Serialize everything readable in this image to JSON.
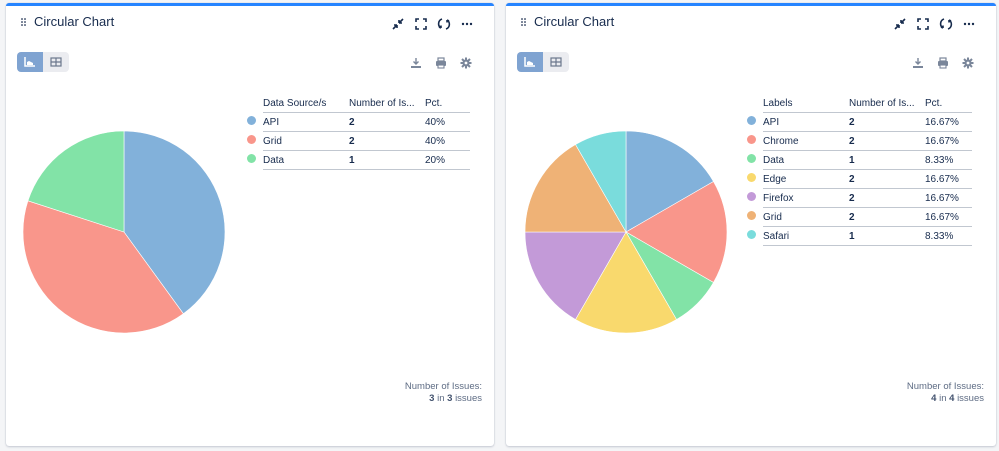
{
  "colors": {
    "accent": "#2684ff",
    "toggle_active": "#7fa3d1",
    "blue": "#82b1da",
    "red": "#f9968b",
    "green": "#82e3a7",
    "yellow": "#f9d96d",
    "purple": "#c39ad8",
    "orange": "#efb276",
    "teal": "#7adcdc"
  },
  "cards": [
    {
      "title": "Circular Chart",
      "header_icons": [
        "collapse-icon",
        "fullscreen-icon",
        "refresh-icon",
        "more-icon"
      ],
      "toolbar": {
        "chart_view": "chart-view",
        "table_view": "table-view",
        "active": "chart-view"
      },
      "tools": [
        "download-icon",
        "print-icon",
        "settings-icon"
      ],
      "legend": {
        "headers": {
          "label": "Data Source/s",
          "count": "Number of Is...",
          "pct": "Pct."
        },
        "rows": [
          {
            "label": "API",
            "count": "2",
            "pct": "40%",
            "color": "#82b1da"
          },
          {
            "label": "Grid",
            "count": "2",
            "pct": "40%",
            "color": "#f9968b"
          },
          {
            "label": "Data",
            "count": "1",
            "pct": "20%",
            "color": "#82e3a7"
          }
        ]
      },
      "footer": {
        "label": "Number of Issues:",
        "shown": "3",
        "in_text": "in",
        "total": "3",
        "suffix": "issues"
      }
    },
    {
      "title": "Circular Chart",
      "header_icons": [
        "collapse-icon",
        "fullscreen-icon",
        "refresh-icon",
        "more-icon"
      ],
      "toolbar": {
        "chart_view": "chart-view",
        "table_view": "table-view",
        "active": "chart-view"
      },
      "tools": [
        "download-icon",
        "print-icon",
        "settings-icon"
      ],
      "legend": {
        "headers": {
          "label": "Labels",
          "count": "Number of Is...",
          "pct": "Pct."
        },
        "rows": [
          {
            "label": "API",
            "count": "2",
            "pct": "16.67%",
            "color": "#82b1da"
          },
          {
            "label": "Chrome",
            "count": "2",
            "pct": "16.67%",
            "color": "#f9968b"
          },
          {
            "label": "Data",
            "count": "1",
            "pct": "8.33%",
            "color": "#82e3a7"
          },
          {
            "label": "Edge",
            "count": "2",
            "pct": "16.67%",
            "color": "#f9d96d"
          },
          {
            "label": "Firefox",
            "count": "2",
            "pct": "16.67%",
            "color": "#c39ad8"
          },
          {
            "label": "Grid",
            "count": "2",
            "pct": "16.67%",
            "color": "#efb276"
          },
          {
            "label": "Safari",
            "count": "1",
            "pct": "8.33%",
            "color": "#7adcdc"
          }
        ]
      },
      "footer": {
        "label": "Number of Issues:",
        "shown": "4",
        "in_text": "in",
        "total": "4",
        "suffix": "issues"
      }
    }
  ],
  "chart_data": [
    {
      "type": "pie",
      "title": "Circular Chart",
      "categories": [
        "API",
        "Grid",
        "Data"
      ],
      "values": [
        2,
        2,
        1
      ],
      "percentages": [
        40,
        40,
        20
      ],
      "colors": [
        "#82b1da",
        "#f9968b",
        "#82e3a7"
      ],
      "legend_position": "right",
      "legend_header": "Data Source/s",
      "total_text": "3 in 3 issues"
    },
    {
      "type": "pie",
      "title": "Circular Chart",
      "categories": [
        "API",
        "Chrome",
        "Data",
        "Edge",
        "Firefox",
        "Grid",
        "Safari"
      ],
      "values": [
        2,
        2,
        1,
        2,
        2,
        2,
        1
      ],
      "percentages": [
        16.67,
        16.67,
        8.33,
        16.67,
        16.67,
        16.67,
        8.33
      ],
      "colors": [
        "#82b1da",
        "#f9968b",
        "#82e3a7",
        "#f9d96d",
        "#c39ad8",
        "#efb276",
        "#7adcdc"
      ],
      "legend_position": "right",
      "legend_header": "Labels",
      "total_text": "4 in 4 issues"
    }
  ]
}
